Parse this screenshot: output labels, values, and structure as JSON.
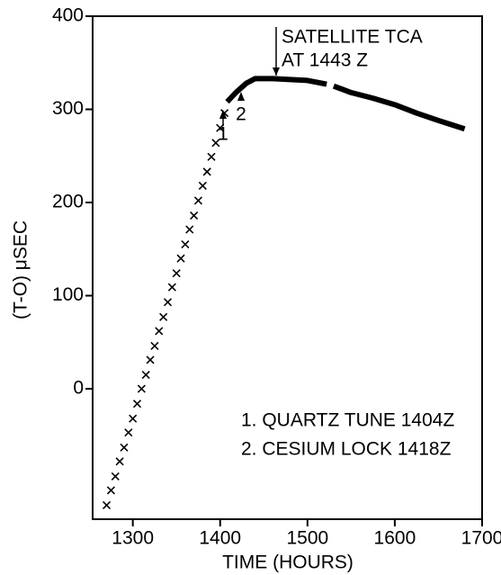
{
  "chart_data": {
    "type": "line",
    "xlabel": "TIME (HOURS)",
    "ylabel": "(T-O) μSEC",
    "xlim": [
      1254,
      1700
    ],
    "xticks": [
      1300,
      1400,
      1500,
      1600,
      1700
    ],
    "ylim": [
      -140,
      400
    ],
    "yticks": [
      0,
      100,
      200,
      300,
      400
    ],
    "grid": false,
    "series": [
      {
        "color": "#000000",
        "marker": "x",
        "x": [
          1270,
          1275,
          1280,
          1285,
          1290,
          1295,
          1300,
          1305,
          1310,
          1315,
          1320,
          1325,
          1330,
          1335,
          1340,
          1345,
          1350,
          1355,
          1360,
          1365,
          1370,
          1375,
          1380,
          1385,
          1390,
          1395,
          1400,
          1405
        ],
        "values": [
          -125,
          -109,
          -94,
          -78,
          -63,
          -47,
          -32,
          -16,
          0,
          15,
          31,
          46,
          62,
          77,
          93,
          109,
          124,
          140,
          155,
          171,
          186,
          202,
          218,
          233,
          249,
          264,
          280,
          296
        ]
      },
      {
        "color": "#000000",
        "x": [
          1408,
          1418,
          1430,
          1440,
          1460,
          1480,
          1500,
          1522,
          1526,
          1530,
          1550,
          1575,
          1600,
          1625,
          1650,
          1680
        ],
        "values": [
          308,
          318,
          328,
          333,
          333,
          332,
          331,
          327,
          null,
          325,
          318,
          312,
          305,
          296,
          288,
          279
        ]
      }
    ],
    "annotations": [
      "SATELLITE TCA",
      "AT 1443 Z",
      "1",
      "2",
      "1. QUARTZ TUNE 1404Z",
      "2. CESIUM LOCK 1418Z"
    ]
  }
}
